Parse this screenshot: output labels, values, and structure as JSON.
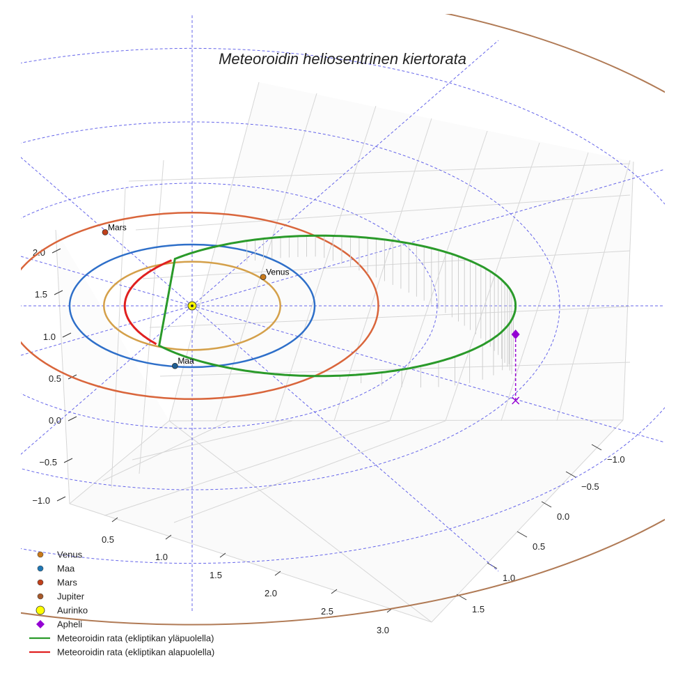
{
  "chart_data": {
    "type": "3d-line",
    "title": "Meteoroidin heliosentrinen kiertorata",
    "xlabel": "",
    "ylabel": "",
    "zlabel": "",
    "x_ticks": [
      "0.5",
      "1.0",
      "1.5",
      "2.0",
      "2.5",
      "3.0"
    ],
    "y_ticks": [
      "−1.0",
      "−0.5",
      "0.0",
      "0.5",
      "1.0",
      "1.5"
    ],
    "z_ticks": [
      "−1.0",
      "−0.5",
      "0.0",
      "0.5",
      "1.0",
      "1.5",
      "2.0"
    ],
    "grid": true,
    "legend_position": "bottom-left",
    "planet_orbits": [
      {
        "name": "Venus",
        "radius_au": 0.72,
        "color": "#d4a04a"
      },
      {
        "name": "Maa",
        "radius_au": 1.0,
        "color": "#2e6fc9"
      },
      {
        "name": "Mars",
        "radius_au": 1.52,
        "color": "#d9653b"
      },
      {
        "name": "Jupiter",
        "radius_au": 5.2,
        "color": "#b07a55"
      }
    ],
    "planet_labels": [
      "Venus",
      "Maa",
      "Mars"
    ],
    "meteoroid": {
      "perihelion_au": 0.55,
      "aphelion_au": 2.64
    },
    "series": [
      {
        "name": "Meteoroidin rata (ekliptikan yläpuolella)",
        "color": "#2a9a2a"
      },
      {
        "name": "Meteoroidin rata (ekliptikan alapuolella)",
        "color": "#e02020"
      }
    ]
  },
  "legend": [
    {
      "label": "Venus",
      "kind": "dot",
      "color": "#c9791a"
    },
    {
      "label": "Maa",
      "kind": "dot",
      "color": "#1f77b4"
    },
    {
      "label": "Mars",
      "kind": "dot",
      "color": "#c0401a"
    },
    {
      "label": "Jupiter",
      "kind": "dot",
      "color": "#a6592a"
    },
    {
      "label": "Aurinko",
      "kind": "sun",
      "color": "#ffff00"
    },
    {
      "label": "Apheli",
      "kind": "diamond",
      "color": "#9400d3"
    },
    {
      "label": "Meteoroidin rata (ekliptikan yläpuolella)",
      "kind": "line",
      "color": "#2a9a2a"
    },
    {
      "label": "Meteoroidin rata (ekliptikan alapuolella)",
      "kind": "line",
      "color": "#e02020"
    }
  ]
}
